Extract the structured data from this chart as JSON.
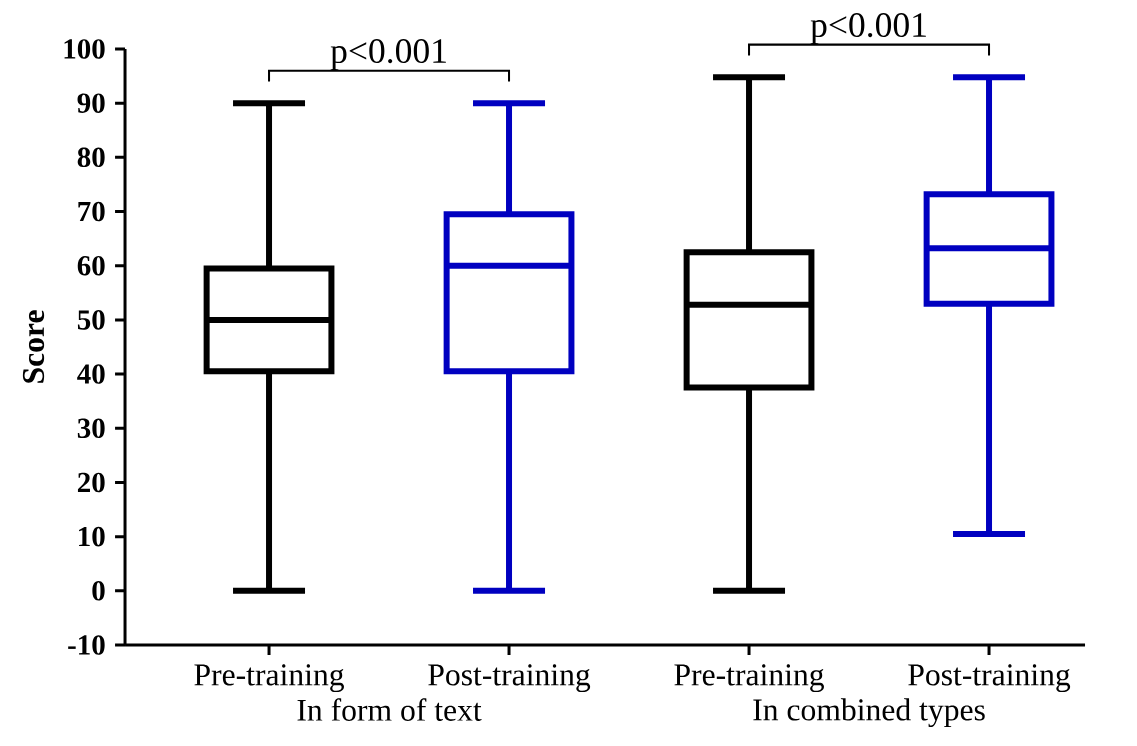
{
  "chart_data": {
    "type": "box",
    "ylabel": "Score",
    "categories": [
      "Pre-training",
      "Post-training",
      "Pre-training",
      "Post-training"
    ],
    "colors": [
      "#000000",
      "#0000c0",
      "#000000",
      "#0000c0"
    ],
    "boxes": [
      {
        "low": 0,
        "q1": 40.5,
        "median": 50,
        "q3": 59.5,
        "high": 90
      },
      {
        "low": 0,
        "q1": 40.5,
        "median": 60,
        "q3": 69.5,
        "high": 90
      },
      {
        "low": 0,
        "q1": 37.5,
        "median": 52.8,
        "q3": 62.5,
        "high": 94.8
      },
      {
        "low": 10.5,
        "q1": 53,
        "median": 63.2,
        "q3": 73.2,
        "high": 94.8
      }
    ],
    "ylim": [
      -10,
      100
    ],
    "yticks": [
      -10,
      0,
      10,
      20,
      30,
      40,
      50,
      60,
      70,
      80,
      90,
      100
    ],
    "grid": false,
    "annotations": [
      "p<0.001",
      "p<0.001",
      "In form of text",
      "In combined types"
    ]
  }
}
